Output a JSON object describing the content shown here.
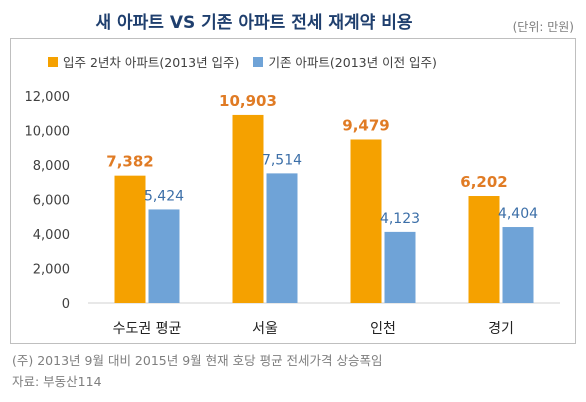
{
  "title": "새 아파트 VS 기존 아파트 전세 재계약 비용",
  "unit_note": "(단위: 만원)",
  "footnote": "(주) 2013년 9월 대비 2015년 9월 현재 호당 평균 전세가격 상승폭임",
  "source": "자료: 부동산114",
  "colors": {
    "series0": "#f5a100",
    "series1": "#6fa3d7",
    "label0": "#e07b24",
    "label1": "#3c6fa8",
    "axis": "#404040"
  },
  "chart_data": {
    "type": "bar",
    "categories": [
      "수도권 평균",
      "서울",
      "인천",
      "경기"
    ],
    "series": [
      {
        "name": "입주 2년차 아파트(2013년 입주)",
        "values": [
          7382,
          10903,
          9479,
          6202
        ],
        "labels": [
          "7,382",
          "10,903",
          "9,479",
          "6,202"
        ]
      },
      {
        "name": "기존 아파트(2013년 이전 입주)",
        "values": [
          5424,
          7514,
          4123,
          4404
        ],
        "labels": [
          "5,424",
          "7,514",
          "4,123",
          "4,404"
        ]
      }
    ],
    "ylim": [
      0,
      12000
    ],
    "yticks": [
      0,
      2000,
      4000,
      6000,
      8000,
      10000,
      12000
    ],
    "ytick_labels": [
      "0",
      "2,000",
      "4,000",
      "6,000",
      "8,000",
      "10,000",
      "12,000"
    ],
    "legend": "top-left",
    "grid": false
  }
}
